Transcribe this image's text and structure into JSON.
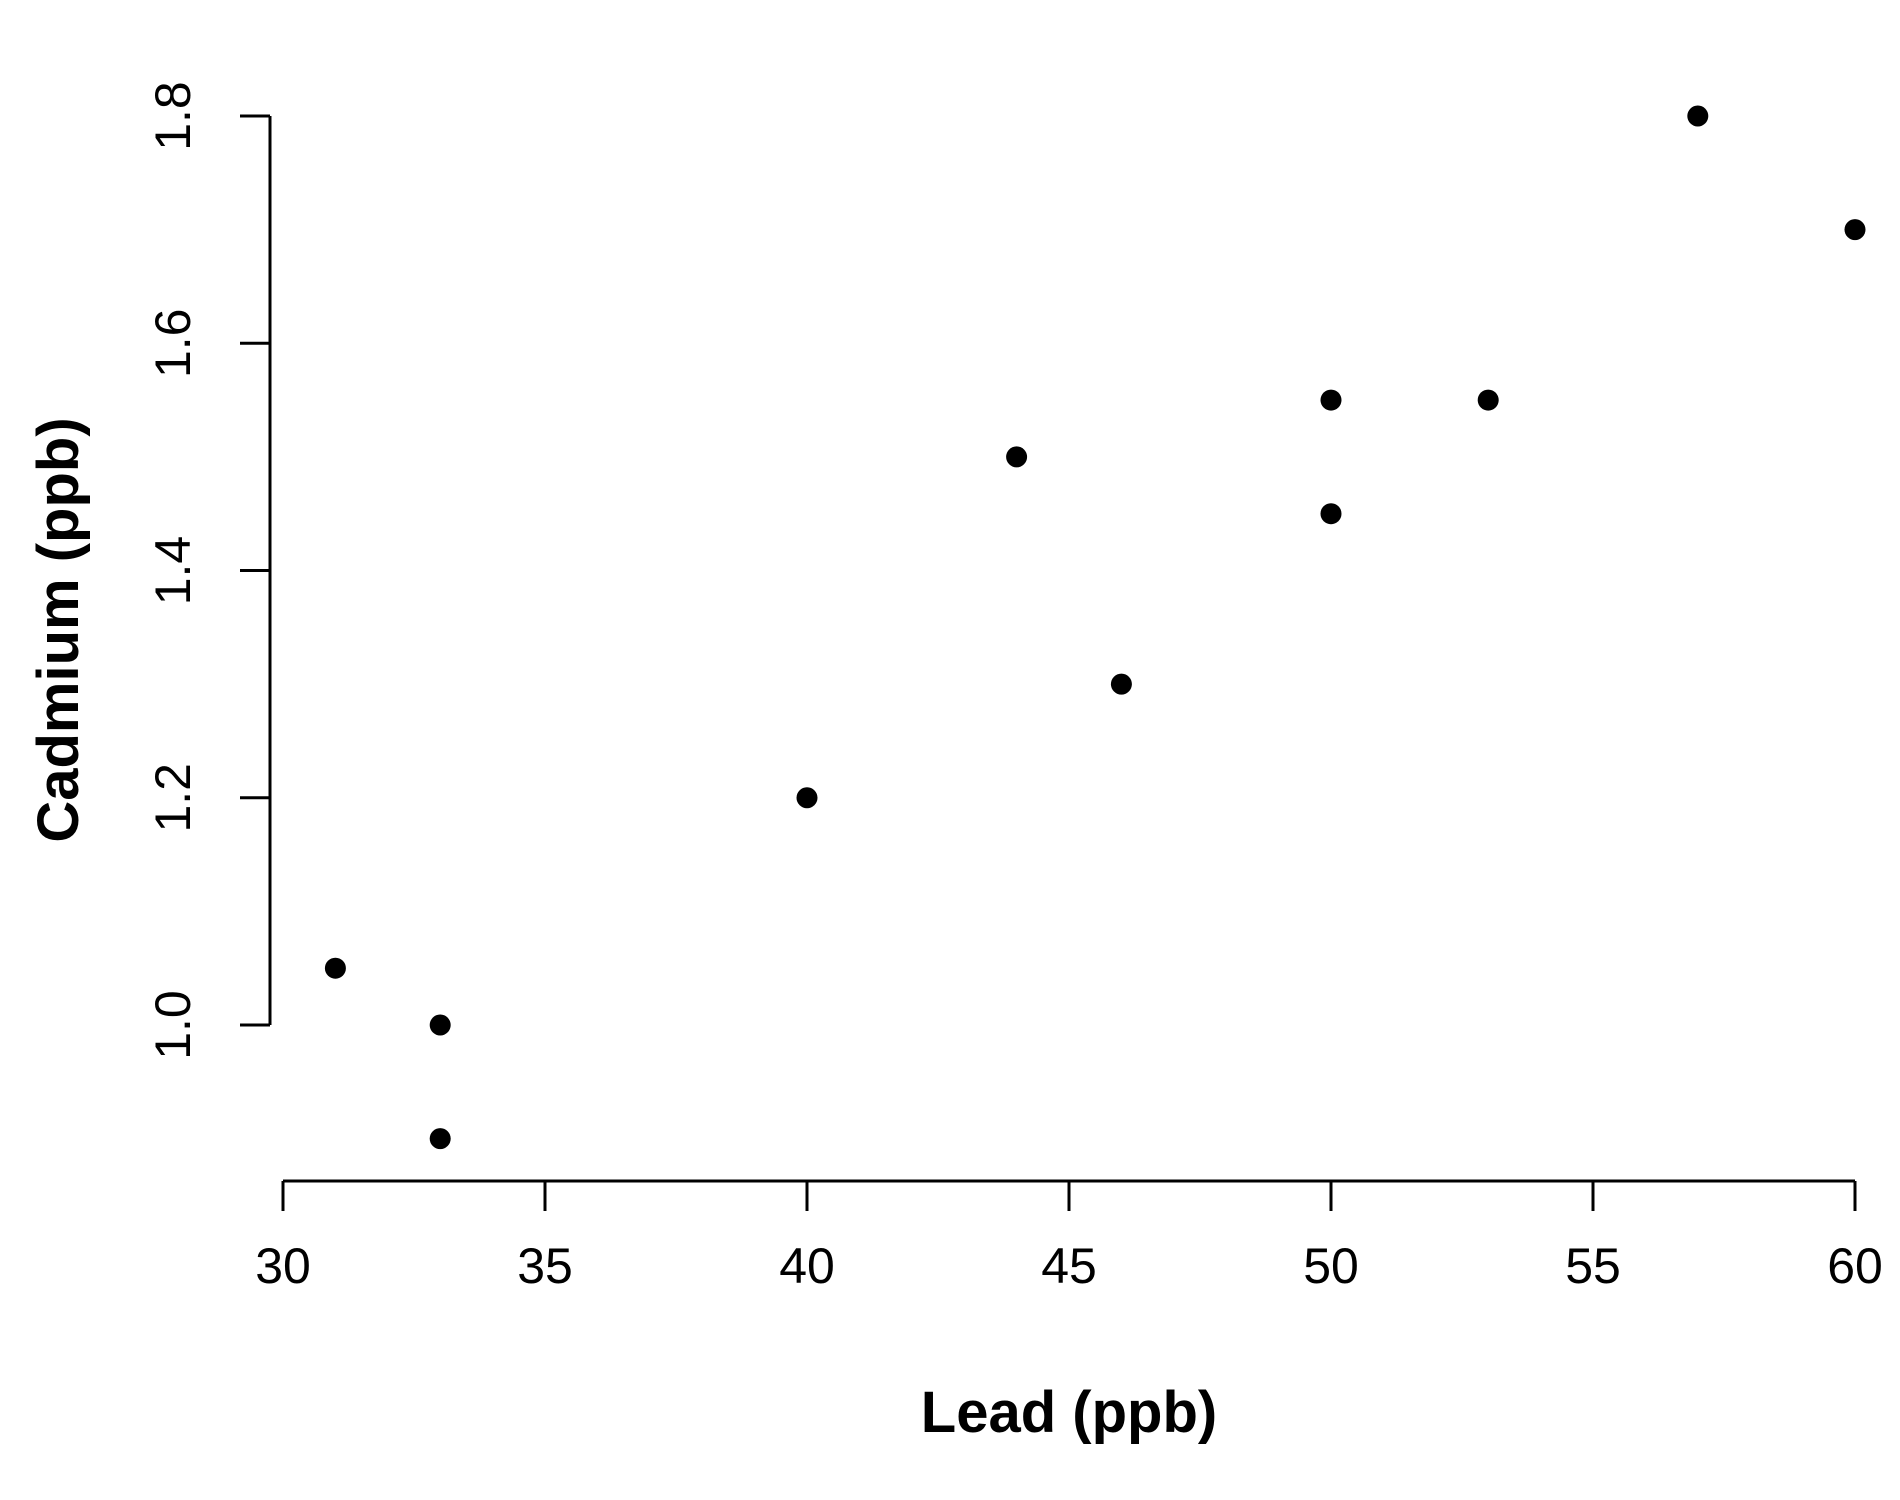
{
  "chart_data": {
    "type": "scatter",
    "title": "",
    "xlabel": "Lead (ppb)",
    "ylabel": "Cadmium (ppb)",
    "xlim": [
      30,
      60
    ],
    "ylim": [
      1.0,
      1.8
    ],
    "x_ticks": [
      30,
      35,
      40,
      45,
      50,
      55,
      60
    ],
    "y_ticks": [
      1.0,
      1.2,
      1.4,
      1.6,
      1.8
    ],
    "x_tick_labels": [
      "30",
      "35",
      "40",
      "45",
      "50",
      "55",
      "60"
    ],
    "y_tick_labels": [
      "1.0",
      "1.2",
      "1.4",
      "1.6",
      "1.8"
    ],
    "grid": false,
    "legend": "none",
    "marker": "filled-circle",
    "color": "#000000",
    "points": [
      {
        "x": 31,
        "y": 1.05
      },
      {
        "x": 33,
        "y": 1.0
      },
      {
        "x": 33,
        "y": 0.9
      },
      {
        "x": 40,
        "y": 1.2
      },
      {
        "x": 44,
        "y": 1.5
      },
      {
        "x": 46,
        "y": 1.3
      },
      {
        "x": 50,
        "y": 1.55
      },
      {
        "x": 50,
        "y": 1.45
      },
      {
        "x": 53,
        "y": 1.55
      },
      {
        "x": 57,
        "y": 1.8
      },
      {
        "x": 60,
        "y": 1.7
      }
    ]
  }
}
